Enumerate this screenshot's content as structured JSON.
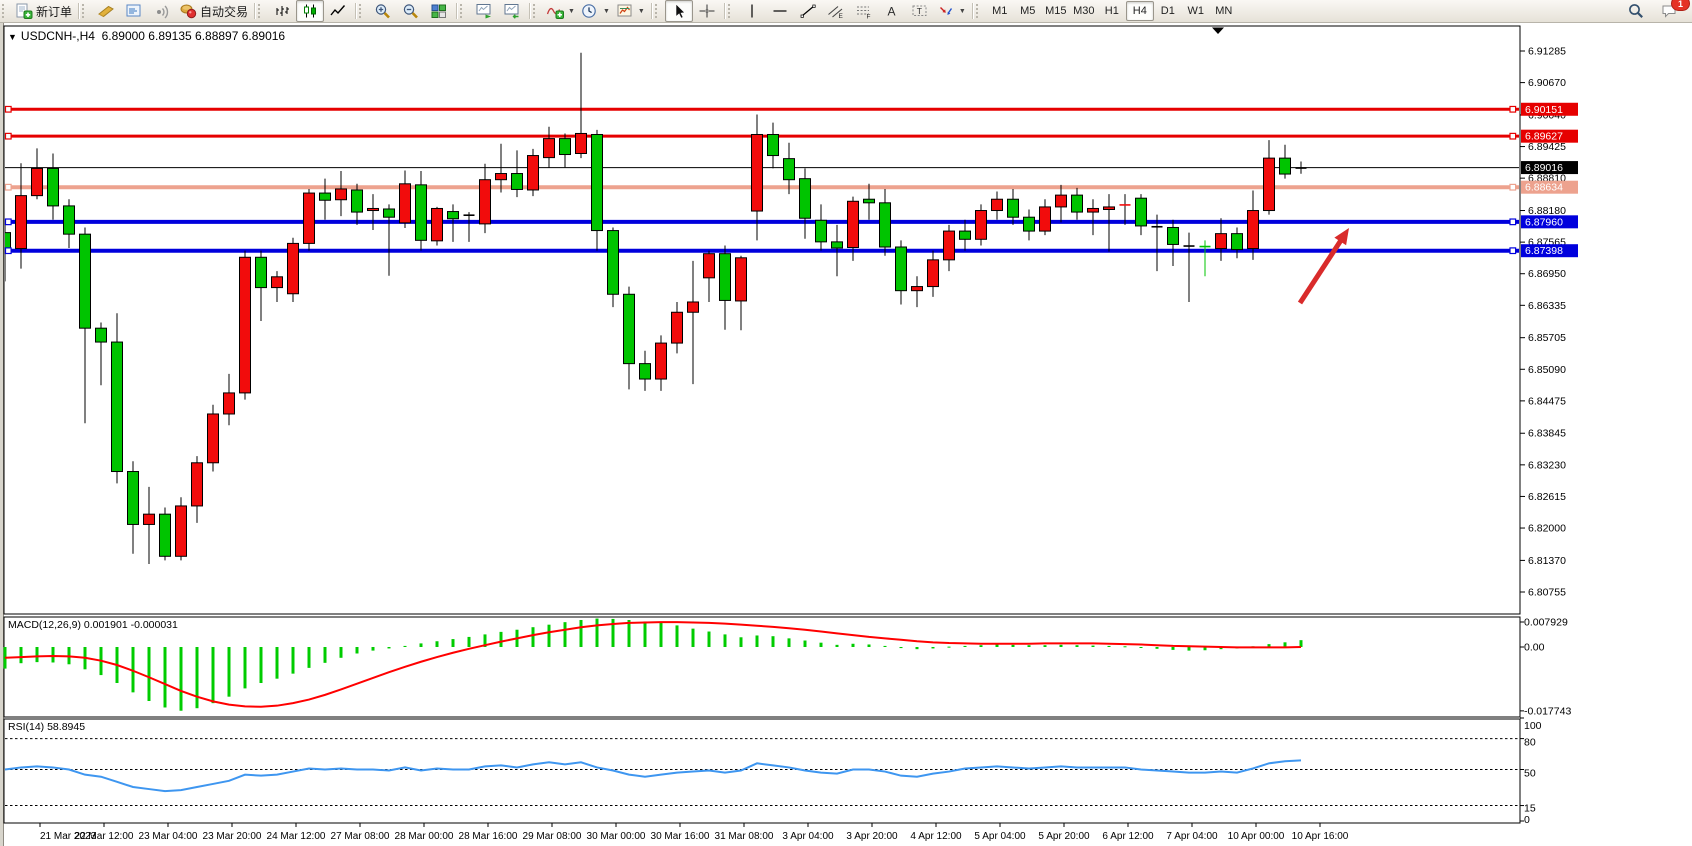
{
  "toolbar": {
    "new_order_label": "新订单",
    "autotrading_label": "自动交易",
    "chat_badge": "1",
    "timeframes": [
      "M1",
      "M5",
      "M15",
      "M30",
      "H1",
      "H4",
      "D1",
      "W1",
      "MN"
    ],
    "active_timeframe": "H4",
    "groups": [
      {
        "items": [
          {
            "icon": "new-order-icon",
            "label_key": "new_order_label",
            "name": "new-order-button"
          }
        ]
      },
      {
        "items": [
          {
            "icon": "styler-icon",
            "name": "styler-button"
          },
          {
            "icon": "market-depth-icon",
            "name": "market-depth-button"
          },
          {
            "icon": "signals-icon",
            "name": "signals-button"
          },
          {
            "icon": "autotrading-icon",
            "label_key": "autotrading_label",
            "name": "autotrading-button"
          }
        ]
      },
      {
        "items": [
          {
            "icon": "bar-chart-icon",
            "name": "bar-chart-button"
          },
          {
            "icon": "candlestick-icon",
            "name": "candlestick-button",
            "active": true
          },
          {
            "icon": "line-chart-icon",
            "name": "line-chart-button"
          }
        ]
      },
      {
        "items": [
          {
            "icon": "zoom-in-icon",
            "name": "zoom-in-button"
          },
          {
            "icon": "zoom-out-icon",
            "name": "zoom-out-button"
          },
          {
            "icon": "tile-windows-icon",
            "name": "tile-windows-button"
          }
        ]
      },
      {
        "items": [
          {
            "icon": "auto-scroll-icon",
            "name": "auto-scroll-button"
          },
          {
            "icon": "chart-shift-icon",
            "name": "chart-shift-button"
          }
        ]
      },
      {
        "items": [
          {
            "icon": "indicators-icon",
            "name": "indicators-button",
            "caret": true
          },
          {
            "icon": "periods-icon",
            "name": "periods-button",
            "caret": true
          },
          {
            "icon": "templates-icon",
            "name": "templates-button",
            "caret": true
          }
        ]
      },
      {
        "items": [
          {
            "icon": "cursor-icon",
            "name": "cursor-button",
            "active": true
          },
          {
            "icon": "crosshair-icon",
            "name": "crosshair-button"
          }
        ]
      },
      {
        "items": [
          {
            "icon": "vertical-line-icon",
            "name": "vertical-line-button"
          },
          {
            "icon": "horizontal-line-icon",
            "name": "horizontal-line-button"
          },
          {
            "icon": "trendline-icon",
            "name": "trendline-button"
          },
          {
            "icon": "channel-icon",
            "name": "equidistant-channel-button"
          },
          {
            "icon": "fibonacci-icon",
            "name": "fibonacci-button"
          },
          {
            "icon": "text-icon",
            "name": "text-button"
          },
          {
            "icon": "text-label-icon",
            "name": "text-label-button"
          },
          {
            "icon": "arrows-icon",
            "name": "arrows-button",
            "caret": true
          }
        ]
      }
    ]
  },
  "chart_header": {
    "text": "USDCNH-,H4  6.89000 6.89135 6.88897 6.89016",
    "symbol": "USDCNH-",
    "period": "H4",
    "open": "6.89000",
    "high": "6.89135",
    "low": "6.88897",
    "close": "6.89016"
  },
  "price_axis": {
    "ticks": [
      "6.91285",
      "6.90670",
      "6.90040",
      "6.89425",
      "6.88810",
      "6.88180",
      "6.87565",
      "6.86950",
      "6.86335",
      "6.85705",
      "6.85090",
      "6.84475",
      "6.83845",
      "6.83230",
      "6.82615",
      "6.82000",
      "6.81370",
      "6.80755"
    ]
  },
  "time_axis": {
    "labels": [
      "21 Mar 2023",
      "22 Mar 12:00",
      "23 Mar 04:00",
      "23 Mar 20:00",
      "24 Mar 12:00",
      "27 Mar 08:00",
      "28 Mar 00:00",
      "28 Mar 16:00",
      "29 Mar 08:00",
      "30 Mar 00:00",
      "30 Mar 16:00",
      "31 Mar 08:00",
      "3 Apr 04:00",
      "3 Apr 20:00",
      "4 Apr 12:00",
      "5 Apr 04:00",
      "5 Apr 20:00",
      "6 Apr 12:00",
      "7 Apr 04:00",
      "10 Apr 00:00",
      "10 Apr 16:00"
    ]
  },
  "hlines": [
    {
      "price": 6.90151,
      "label": "6.90151",
      "color": "#e60000",
      "width": 3,
      "handles": true
    },
    {
      "price": 6.89627,
      "label": "6.89627",
      "color": "#e60000",
      "width": 3,
      "handles": true
    },
    {
      "price": 6.89016,
      "label": "6.89016",
      "color": "#000000",
      "width": 1,
      "handles": false
    },
    {
      "price": 6.88634,
      "label": "6.88634",
      "color": "#eda28e",
      "width": 4,
      "handles": true
    },
    {
      "price": 6.8796,
      "label": "6.87960",
      "color": "#0000dd",
      "width": 4,
      "handles": true
    },
    {
      "price": 6.87398,
      "label": "6.87398",
      "color": "#0000dd",
      "width": 4,
      "handles": true
    }
  ],
  "chart_data": {
    "type": "candlestick",
    "title": "USDCNH-,H4",
    "ylim": [
      6.80755,
      6.91285
    ],
    "candles": [
      [
        6.8775,
        6.879,
        6.868,
        6.8742
      ],
      [
        6.8744,
        6.891,
        6.8705,
        6.8847
      ],
      [
        6.8847,
        6.8939,
        6.884,
        6.89
      ],
      [
        6.89,
        6.8929,
        6.88,
        6.8827
      ],
      [
        6.8827,
        6.884,
        6.8745,
        6.8772
      ],
      [
        6.8772,
        6.8785,
        6.8404,
        6.8589
      ],
      [
        6.8589,
        6.86,
        6.8478,
        6.8562
      ],
      [
        6.8562,
        6.8618,
        6.8287,
        6.831
      ],
      [
        6.831,
        6.833,
        6.815,
        6.8207
      ],
      [
        6.8207,
        6.828,
        6.813,
        6.8227
      ],
      [
        6.8227,
        6.824,
        6.8137,
        6.8145
      ],
      [
        6.8145,
        6.826,
        6.8137,
        6.8243
      ],
      [
        6.8243,
        6.834,
        6.821,
        6.8327
      ],
      [
        6.8327,
        6.844,
        6.831,
        6.8422
      ],
      [
        6.8422,
        6.85,
        6.84,
        6.8463
      ],
      [
        6.8463,
        6.874,
        6.845,
        6.8727
      ],
      [
        6.8727,
        6.874,
        6.8603,
        6.8668
      ],
      [
        6.8668,
        6.87,
        6.864,
        6.8689
      ],
      [
        6.8656,
        6.8765,
        6.864,
        6.8754
      ],
      [
        6.8754,
        6.886,
        6.874,
        6.8852
      ],
      [
        6.8852,
        6.888,
        6.88,
        6.8838
      ],
      [
        6.8839,
        6.8895,
        6.8807,
        6.886
      ],
      [
        6.8858,
        6.887,
        6.879,
        6.8815
      ],
      [
        6.8818,
        6.885,
        6.878,
        6.8822
      ],
      [
        6.8821,
        6.883,
        6.8691,
        6.8805
      ],
      [
        6.8794,
        6.8896,
        6.8784,
        6.887
      ],
      [
        6.8868,
        6.8895,
        6.874,
        6.876
      ],
      [
        6.8759,
        6.8825,
        6.875,
        6.8822
      ],
      [
        6.8816,
        6.883,
        6.8757,
        6.8802
      ],
      [
        6.8808,
        6.8815,
        6.8757,
        6.881
      ],
      [
        6.8792,
        6.8909,
        6.8774,
        6.8878
      ],
      [
        6.8878,
        6.8948,
        6.8853,
        6.889
      ],
      [
        6.889,
        6.8935,
        6.8844,
        6.8859
      ],
      [
        6.8858,
        6.8938,
        6.8846,
        6.8925
      ],
      [
        6.8921,
        6.8981,
        6.8901,
        6.8958
      ],
      [
        6.8958,
        6.8968,
        6.8902,
        6.8927
      ],
      [
        6.8929,
        6.9125,
        6.892,
        6.8968
      ],
      [
        6.8966,
        6.8975,
        6.874,
        6.8779
      ],
      [
        6.8779,
        6.8785,
        6.863,
        6.8655
      ],
      [
        6.8655,
        6.867,
        6.847,
        6.852
      ],
      [
        6.852,
        6.8545,
        6.8467,
        6.849
      ],
      [
        6.849,
        6.8575,
        6.8467,
        6.856
      ],
      [
        6.856,
        6.864,
        6.854,
        6.862
      ],
      [
        6.862,
        6.872,
        6.848,
        6.864
      ],
      [
        6.8687,
        6.874,
        6.864,
        6.8734
      ],
      [
        6.8734,
        6.875,
        6.8586,
        6.8643
      ],
      [
        6.8642,
        6.873,
        6.8585,
        6.8726
      ],
      [
        6.8817,
        6.9005,
        6.876,
        6.8966
      ],
      [
        6.8966,
        6.8989,
        6.89,
        6.8925
      ],
      [
        6.8919,
        6.895,
        6.885,
        6.8878
      ],
      [
        6.888,
        6.89,
        6.8763,
        6.8803
      ],
      [
        6.8799,
        6.883,
        6.874,
        6.8757
      ],
      [
        6.8757,
        6.879,
        6.869,
        6.8745
      ],
      [
        6.8746,
        6.8845,
        6.872,
        6.8836
      ],
      [
        6.884,
        6.887,
        6.88,
        6.8833
      ],
      [
        6.8833,
        6.886,
        6.873,
        6.8747
      ],
      [
        6.8747,
        6.876,
        6.8635,
        6.8662
      ],
      [
        6.8662,
        6.869,
        6.863,
        6.867
      ],
      [
        6.867,
        6.874,
        6.865,
        6.8722
      ],
      [
        6.8722,
        6.879,
        6.87,
        6.8778
      ],
      [
        6.8778,
        6.88,
        6.874,
        6.8762
      ],
      [
        6.8762,
        6.883,
        6.875,
        6.8818
      ],
      [
        6.8818,
        6.8855,
        6.88,
        6.884
      ],
      [
        6.884,
        6.886,
        6.879,
        6.8805
      ],
      [
        6.8805,
        6.882,
        6.876,
        6.8778
      ],
      [
        6.8778,
        6.884,
        6.877,
        6.8825
      ],
      [
        6.8825,
        6.8868,
        6.8795,
        6.8848
      ],
      [
        6.8848,
        6.8862,
        6.88,
        6.8815
      ],
      [
        6.8815,
        6.884,
        6.877,
        6.8822
      ],
      [
        6.882,
        6.885,
        6.8738,
        6.8825
      ],
      [
        6.8828,
        6.885,
        6.879,
        6.883
      ],
      [
        6.8842,
        6.885,
        6.877,
        6.8788
      ],
      [
        6.8788,
        6.881,
        6.87,
        6.8785
      ],
      [
        6.8785,
        6.88,
        6.871,
        6.8752
      ],
      [
        6.875,
        6.8775,
        6.864,
        6.8748
      ],
      [
        6.8748,
        6.876,
        6.869,
        6.8748
      ],
      [
        6.8744,
        6.8803,
        6.872,
        6.8773
      ],
      [
        6.8773,
        6.8785,
        6.8725,
        6.8742
      ],
      [
        6.8744,
        6.8857,
        6.8722,
        6.8818
      ],
      [
        6.8818,
        6.8955,
        6.881,
        6.892
      ],
      [
        6.892,
        6.8946,
        6.888,
        6.8889
      ],
      [
        6.89,
        6.89135,
        6.88897,
        6.89016
      ]
    ],
    "special_black_dojis": [
      23,
      29,
      72,
      74,
      81
    ],
    "special_lime_dojis": [
      75
    ],
    "macd": {
      "title": "MACD(12,26,9)",
      "values_text": "0.001901 -0.000031",
      "main_value": "0.001901",
      "signal_value": "-0.000031",
      "axis_labels": [
        "0.007929",
        "0.00",
        "-0.017743"
      ],
      "histogram": [
        -0.006,
        -0.0045,
        -0.0042,
        -0.0043,
        -0.0048,
        -0.0062,
        -0.0078,
        -0.01,
        -0.0126,
        -0.015,
        -0.0168,
        -0.0177,
        -0.017,
        -0.0156,
        -0.0138,
        -0.0115,
        -0.01,
        -0.0088,
        -0.0074,
        -0.0058,
        -0.0044,
        -0.003,
        -0.0018,
        -0.001,
        -0.0004,
        0.0003,
        0.001,
        0.0016,
        0.0022,
        0.0028,
        0.0035,
        0.0042,
        0.0048,
        0.0055,
        0.0062,
        0.0069,
        0.0075,
        0.0079,
        0.0078,
        0.0075,
        0.0071,
        0.0067,
        0.006,
        0.0051,
        0.0043,
        0.0035,
        0.0027,
        0.0032,
        0.003,
        0.0024,
        0.0018,
        0.0012,
        0.0006,
        0.0009,
        0.0007,
        0.0003,
        -0.0003,
        -0.0006,
        -0.0004,
        0.0001,
        0.0003,
        0.0005,
        0.0007,
        0.0006,
        0.0005,
        0.0005,
        0.0006,
        0.0005,
        0.0004,
        0.0003,
        0.0002,
        -0.0002,
        -0.0005,
        -0.0008,
        -0.001,
        -0.0009,
        -0.0006,
        -0.0004,
        0.0002,
        0.0008,
        0.0013,
        0.0019
      ],
      "signal": [
        -0.003,
        -0.0028,
        -0.0026,
        -0.0025,
        -0.0026,
        -0.003,
        -0.0038,
        -0.005,
        -0.0066,
        -0.0084,
        -0.0103,
        -0.0122,
        -0.0138,
        -0.0151,
        -0.016,
        -0.0165,
        -0.0166,
        -0.0163,
        -0.0156,
        -0.0146,
        -0.0133,
        -0.0118,
        -0.0102,
        -0.0086,
        -0.007,
        -0.0055,
        -0.0041,
        -0.0028,
        -0.0016,
        -0.0005,
        0.0005,
        0.0015,
        0.0024,
        0.0033,
        0.0041,
        0.0048,
        0.0055,
        0.006,
        0.0064,
        0.0067,
        0.0068,
        0.0069,
        0.0069,
        0.0068,
        0.0067,
        0.0065,
        0.0062,
        0.0059,
        0.0056,
        0.0052,
        0.0048,
        0.0043,
        0.0038,
        0.0033,
        0.0028,
        0.0024,
        0.002,
        0.0016,
        0.0013,
        0.0011,
        0.001,
        0.0009,
        0.0009,
        0.0009,
        0.0009,
        0.001,
        0.001,
        0.001,
        0.001,
        0.0009,
        0.0008,
        0.0007,
        0.0005,
        0.0003,
        0.0002,
        0.0001,
        0.0,
        -0.0001,
        -0.0001,
        -0.0001,
        -0.0001,
        0.0
      ]
    },
    "rsi": {
      "title": "RSI(14)",
      "value_text": "58.8945",
      "levels": [
        "100",
        "80",
        "50",
        "15",
        "0"
      ],
      "dashed_levels": [
        80,
        50,
        15
      ],
      "line": [
        50,
        52,
        53,
        52,
        50,
        45,
        43,
        38,
        33,
        31,
        29,
        30,
        33,
        36,
        39,
        45,
        44,
        45,
        48,
        51,
        50,
        51,
        50,
        50,
        49,
        52,
        49,
        51,
        50,
        50,
        53,
        54,
        52,
        55,
        57,
        55,
        57,
        52,
        49,
        45,
        43,
        45,
        47,
        48,
        49,
        47,
        49,
        56,
        54,
        52,
        49,
        47,
        46,
        50,
        50,
        48,
        44,
        43,
        46,
        48,
        51,
        52,
        53,
        52,
        51,
        52,
        53,
        52,
        52,
        52,
        52,
        50,
        49,
        48,
        47,
        47,
        48,
        47,
        51,
        56,
        58,
        58.9
      ]
    }
  },
  "annotations": {
    "arrow": {
      "color": "#d92b2b",
      "tail": [
        1300,
        302
      ],
      "tip": [
        1349,
        227
      ]
    }
  },
  "colors": {
    "bull": "#f20c0c",
    "bear": "#00c400",
    "wick": "#000000",
    "macd_hist": "#00cc00",
    "macd_signal": "#ff0000",
    "rsi_line": "#3e96f0",
    "background": "#ffffff",
    "frame": "#000000",
    "toolbar_bg": "#eceae2",
    "tag_black": "#000000"
  }
}
